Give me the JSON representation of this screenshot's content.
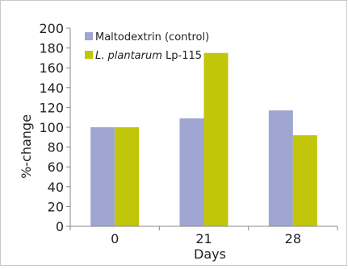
{
  "chart_data": {
    "type": "bar",
    "title": "",
    "xlabel": "Days",
    "ylabel": "%-change",
    "categories": [
      "0",
      "21",
      "28"
    ],
    "ylim": [
      0,
      200
    ],
    "yticks": [
      "0",
      "20",
      "40",
      "60",
      "80",
      "100",
      "120",
      "140",
      "160",
      "180",
      "200"
    ],
    "grid": false,
    "legend_position": "top-left",
    "series": [
      {
        "name": "Maltodextrin (control)",
        "values": [
          100,
          109,
          117
        ],
        "color": "#9fa6d1"
      },
      {
        "name_italic": "L. plantarum",
        "name_rest": " Lp-115",
        "values": [
          100,
          175,
          92
        ],
        "color": "#c2c608"
      }
    ]
  }
}
